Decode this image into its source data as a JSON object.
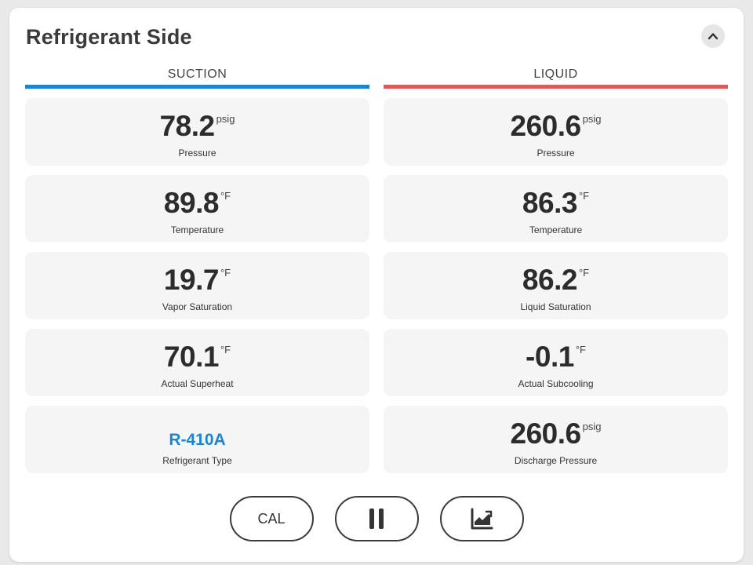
{
  "panel": {
    "title": "Refrigerant Side",
    "collapse_icon": "chevron-up-icon"
  },
  "colors": {
    "suction_bar": "#1a85d6",
    "liquid_bar": "#e25858",
    "refrigerant_text": "#1a85d6"
  },
  "suction": {
    "header": "SUCTION",
    "pressure": {
      "value": "78.2",
      "unit": "psig",
      "label": "Pressure"
    },
    "temperature": {
      "value": "89.8",
      "unit": "°F",
      "label": "Temperature"
    },
    "saturation": {
      "value": "19.7",
      "unit": "°F",
      "label": "Vapor Saturation"
    },
    "superheat": {
      "value": "70.1",
      "unit": "°F",
      "label": "Actual Superheat"
    },
    "refrigerant": {
      "value": "R-410A",
      "label": "Refrigerant Type"
    }
  },
  "liquid": {
    "header": "LIQUID",
    "pressure": {
      "value": "260.6",
      "unit": "psig",
      "label": "Pressure"
    },
    "temperature": {
      "value": "86.3",
      "unit": "°F",
      "label": "Temperature"
    },
    "saturation": {
      "value": "86.2",
      "unit": "°F",
      "label": "Liquid Saturation"
    },
    "subcooling": {
      "value": "-0.1",
      "unit": "°F",
      "label": "Actual Subcooling"
    },
    "discharge": {
      "value": "260.6",
      "unit": "psig",
      "label": "Discharge Pressure"
    }
  },
  "controls": {
    "cal_label": "CAL",
    "pause_icon": "pause-icon",
    "chart_icon": "trend-chart-icon"
  }
}
